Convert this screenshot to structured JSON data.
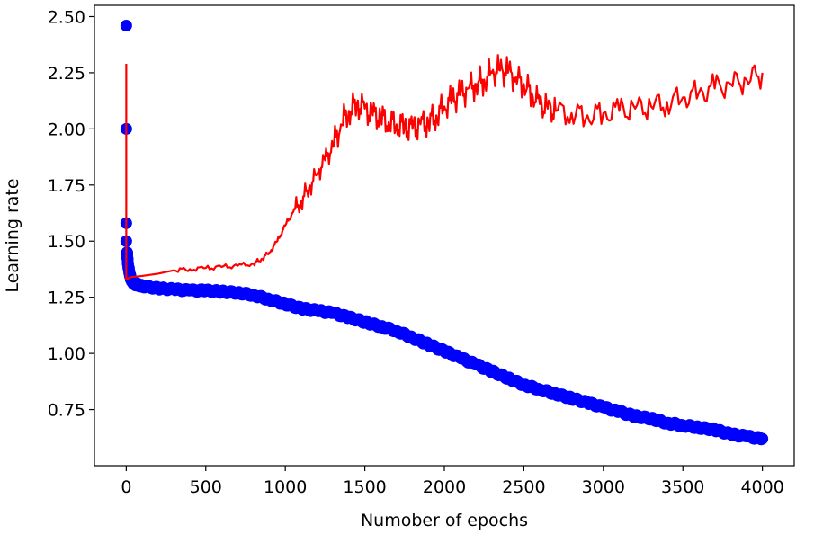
{
  "chart_data": {
    "type": "line+scatter",
    "title": "",
    "xlabel": "Numober of epochs",
    "ylabel": "Learning rate",
    "xlim": [
      -200,
      4200
    ],
    "ylim": [
      0.5,
      2.55
    ],
    "xticks": [
      0,
      500,
      1000,
      1500,
      2000,
      2500,
      3000,
      3500,
      4000
    ],
    "xtick_labels": [
      "0",
      "500",
      "1000",
      "1500",
      "2000",
      "2500",
      "3000",
      "3500",
      "4000"
    ],
    "yticks": [
      0.75,
      1.0,
      1.25,
      1.5,
      1.75,
      2.0,
      2.25,
      2.5
    ],
    "ytick_labels": [
      "0.75",
      "1.00",
      "1.25",
      "1.50",
      "1.75",
      "2.00",
      "2.25",
      "2.50"
    ],
    "grid": false,
    "series": [
      {
        "name": "scatter-blue",
        "kind": "scatter",
        "color": "#0000ff",
        "x": [
          0,
          0,
          0,
          0,
          5,
          10,
          20,
          30,
          50,
          100,
          200,
          300,
          400,
          500,
          600,
          700,
          800,
          900,
          1000,
          1100,
          1200,
          1300,
          1400,
          1500,
          1600,
          1700,
          1800,
          1900,
          2000,
          2100,
          2200,
          2300,
          2400,
          2500,
          2600,
          2700,
          2800,
          2900,
          3000,
          3100,
          3200,
          3300,
          3400,
          3500,
          3600,
          3700,
          3800,
          3900,
          4000
        ],
        "y": [
          2.46,
          2.0,
          1.58,
          1.5,
          1.45,
          1.4,
          1.36,
          1.33,
          1.31,
          1.3,
          1.29,
          1.285,
          1.28,
          1.28,
          1.275,
          1.27,
          1.26,
          1.24,
          1.22,
          1.2,
          1.19,
          1.18,
          1.16,
          1.14,
          1.12,
          1.1,
          1.07,
          1.04,
          1.01,
          0.98,
          0.95,
          0.92,
          0.89,
          0.86,
          0.84,
          0.82,
          0.8,
          0.78,
          0.76,
          0.74,
          0.72,
          0.71,
          0.69,
          0.68,
          0.67,
          0.66,
          0.64,
          0.63,
          0.62
        ]
      },
      {
        "name": "line-red",
        "kind": "line",
        "color": "#ff0000",
        "x": [
          0,
          0,
          30,
          100,
          200,
          300,
          400,
          500,
          600,
          700,
          800,
          850,
          900,
          950,
          1000,
          1050,
          1100,
          1150,
          1200,
          1250,
          1300,
          1350,
          1400,
          1450,
          1500,
          1550,
          1600,
          1650,
          1700,
          1750,
          1800,
          1850,
          1900,
          1950,
          2000,
          2050,
          2100,
          2150,
          2200,
          2250,
          2300,
          2350,
          2400,
          2450,
          2500,
          2550,
          2600,
          2650,
          2700,
          2800,
          2900,
          3000,
          3100,
          3200,
          3300,
          3400,
          3500,
          3600,
          3700,
          3800,
          3900,
          4000
        ],
        "y": [
          2.29,
          1.33,
          1.34,
          1.345,
          1.355,
          1.37,
          1.375,
          1.38,
          1.385,
          1.39,
          1.4,
          1.42,
          1.45,
          1.5,
          1.57,
          1.63,
          1.68,
          1.74,
          1.8,
          1.86,
          1.92,
          2.02,
          2.08,
          2.11,
          2.09,
          2.06,
          2.05,
          2.03,
          2.02,
          2.01,
          2.0,
          2.02,
          2.03,
          2.06,
          2.1,
          2.13,
          2.15,
          2.18,
          2.2,
          2.22,
          2.25,
          2.26,
          2.25,
          2.23,
          2.2,
          2.16,
          2.11,
          2.09,
          2.08,
          2.07,
          2.06,
          2.07,
          2.08,
          2.09,
          2.1,
          2.12,
          2.14,
          2.16,
          2.18,
          2.2,
          2.22,
          2.25
        ]
      }
    ]
  }
}
